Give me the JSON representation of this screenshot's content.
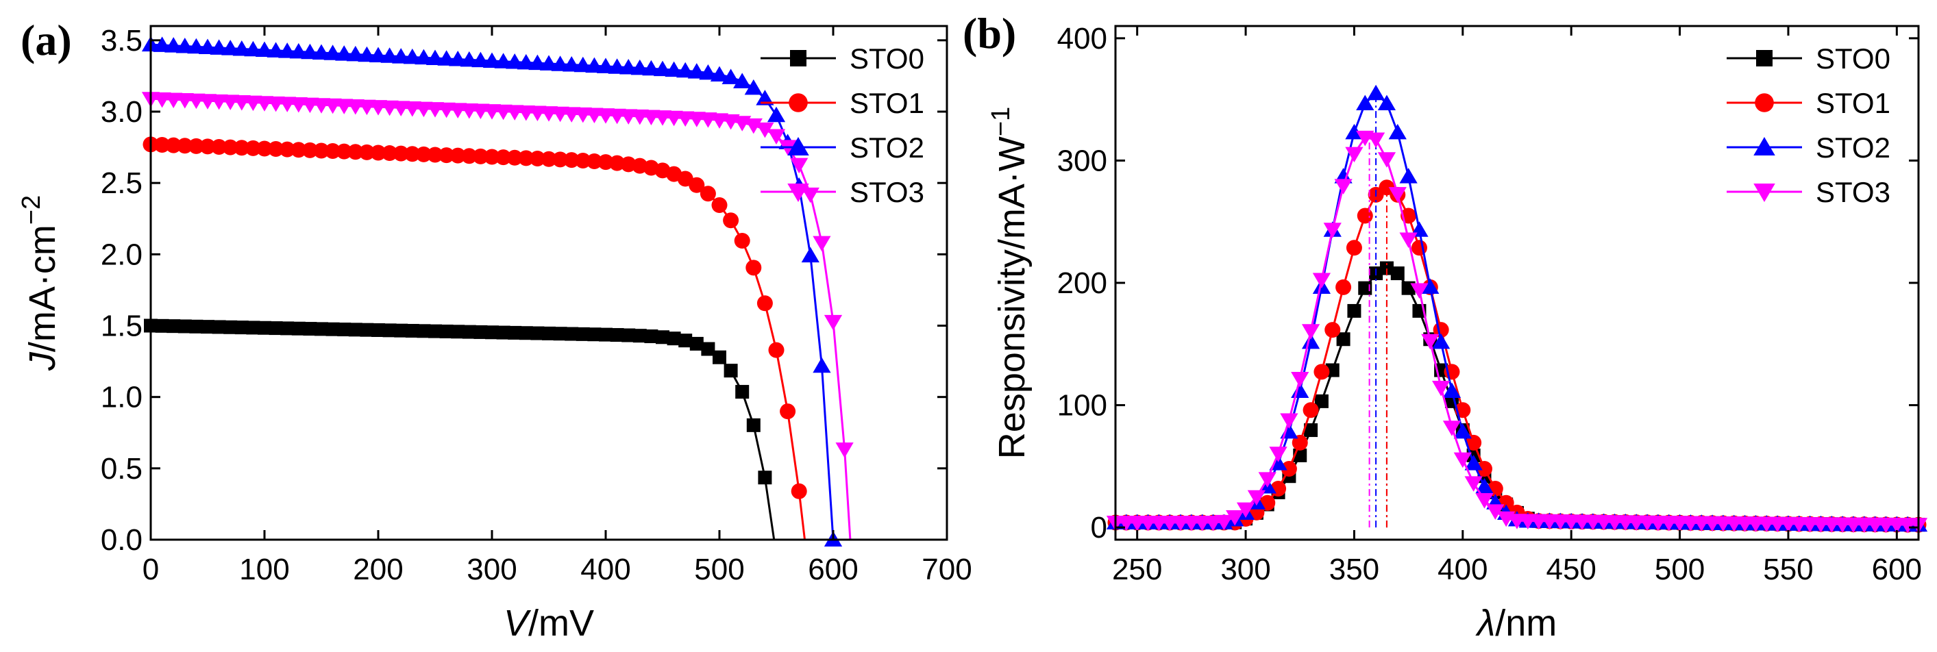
{
  "figure": {
    "panel_labels": [
      "(a)",
      "(b)"
    ]
  },
  "chart_data": [
    {
      "type": "line",
      "panel": "(a)",
      "title": "",
      "xlabel_italic": "V",
      "xlabel_rest": "/mV",
      "ylabel_italic": "J",
      "ylabel_rest": "/mA·cm",
      "ylabel_sup": "−2",
      "xlim": [
        0,
        700
      ],
      "ylim": [
        0,
        3.6
      ],
      "xticks": [
        0,
        100,
        200,
        300,
        400,
        500,
        600,
        700
      ],
      "yticks": [
        0.0,
        0.5,
        1.0,
        1.5,
        2.0,
        2.5,
        3.0,
        3.5
      ],
      "ytick_labels": [
        "0.0",
        "0.5",
        "1.0",
        "1.5",
        "2.0",
        "2.5",
        "3.0",
        "3.5"
      ],
      "legend_position": "top-right",
      "series": [
        {
          "name": "STO0",
          "color": "#000000",
          "marker": "square",
          "jsc": 1.5,
          "voc": 548,
          "fill_factor": 0.62
        },
        {
          "name": "STO1",
          "color": "#ff0000",
          "marker": "circle",
          "jsc": 2.77,
          "voc": 575,
          "fill_factor": 0.6
        },
        {
          "name": "STO2",
          "color": "#0000ff",
          "marker": "triangle-up",
          "jsc": 3.47,
          "voc": 600,
          "fill_factor": 0.56
        },
        {
          "name": "STO3",
          "color": "#ff00ff",
          "marker": "triangle-down",
          "jsc": 3.09,
          "voc": 615,
          "fill_factor": 0.62
        }
      ]
    },
    {
      "type": "line",
      "panel": "(b)",
      "title": "",
      "xlabel_italic": "λ",
      "xlabel_rest": "/nm",
      "ylabel_rest": "Responsivity/mA·W",
      "ylabel_sup": "−1",
      "xlim": [
        240,
        610
      ],
      "ylim": [
        -10,
        410
      ],
      "xticks": [
        250,
        300,
        350,
        400,
        450,
        500,
        550,
        600
      ],
      "yticks": [
        0,
        100,
        200,
        300,
        400
      ],
      "legend_position": "top-right",
      "series": [
        {
          "name": "STO0",
          "color": "#000000",
          "marker": "square",
          "peak_wavelength": 365,
          "peak_value": 212,
          "sigma": 25
        },
        {
          "name": "STO1",
          "color": "#ff0000",
          "marker": "circle",
          "peak_wavelength": 365,
          "peak_value": 278,
          "sigma": 24
        },
        {
          "name": "STO2",
          "color": "#0000ff",
          "marker": "triangle-up",
          "peak_wavelength": 360,
          "peak_value": 355,
          "sigma": 23
        },
        {
          "name": "STO3",
          "color": "#ff00ff",
          "marker": "triangle-down",
          "peak_wavelength": 357,
          "peak_value": 320,
          "sigma": 23
        }
      ]
    }
  ]
}
